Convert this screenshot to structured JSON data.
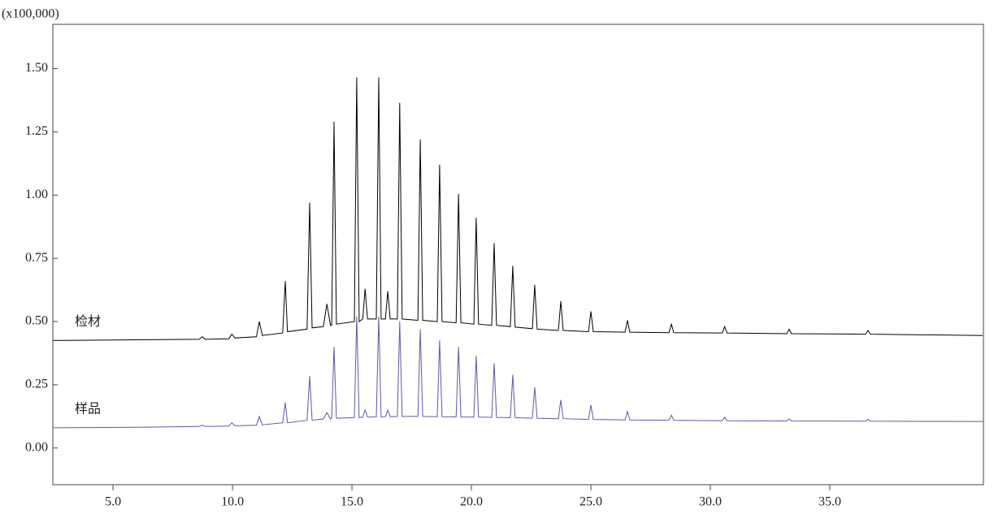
{
  "chart_data": {
    "type": "line",
    "y_axis_label": "(x100,000)",
    "xlim": [
      2.48,
      41.43
    ],
    "ylim": [
      -0.145,
      1.675
    ],
    "xticks": [
      {
        "value": 5,
        "label": "5.0"
      },
      {
        "value": 10,
        "label": "10.0"
      },
      {
        "value": 15,
        "label": "15.0"
      },
      {
        "value": 20,
        "label": "20.0"
      },
      {
        "value": 25,
        "label": "25.0"
      },
      {
        "value": 30,
        "label": "30.0"
      },
      {
        "value": 35,
        "label": "35.0"
      }
    ],
    "yticks": [
      {
        "value": 0,
        "label": "0.00"
      },
      {
        "value": 0.25,
        "label": "0.25"
      },
      {
        "value": 0.5,
        "label": "0.50"
      },
      {
        "value": 0.75,
        "label": "0.75"
      },
      {
        "value": 1,
        "label": "1.00"
      },
      {
        "value": 1.25,
        "label": "1.25"
      },
      {
        "value": 1.5,
        "label": "1.50"
      }
    ],
    "grid": false,
    "x": [
      2.5,
      6.0,
      8.6,
      8.74,
      8.85,
      9.85,
      9.97,
      10.1,
      11.0,
      11.12,
      11.25,
      12.1,
      12.21,
      12.3,
      13.12,
      13.23,
      13.33,
      13.8,
      13.95,
      14.1,
      14.15,
      14.25,
      14.35,
      15.1,
      15.2,
      15.3,
      15.45,
      15.55,
      15.65,
      16.02,
      16.12,
      16.22,
      16.4,
      16.5,
      16.6,
      16.9,
      17.0,
      17.1,
      17.76,
      17.86,
      17.96,
      18.57,
      18.67,
      18.77,
      19.36,
      19.46,
      19.56,
      20.1,
      20.2,
      20.3,
      20.85,
      20.95,
      21.05,
      21.63,
      21.73,
      21.83,
      22.55,
      22.65,
      22.75,
      23.64,
      23.74,
      23.84,
      24.9,
      25.0,
      25.1,
      26.43,
      26.53,
      26.63,
      28.27,
      28.37,
      28.47,
      30.5,
      30.6,
      30.7,
      33.2,
      33.3,
      33.4,
      36.5,
      36.6,
      36.7,
      41.4
    ],
    "series": [
      {
        "name": "检材",
        "color": "#000000",
        "values": [
          0.425,
          0.428,
          0.43,
          0.44,
          0.43,
          0.432,
          0.45,
          0.435,
          0.44,
          0.5,
          0.445,
          0.455,
          0.66,
          0.46,
          0.47,
          0.97,
          0.475,
          0.48,
          0.57,
          0.485,
          0.485,
          1.29,
          0.49,
          0.5,
          1.465,
          0.5,
          0.51,
          0.63,
          0.51,
          0.51,
          1.465,
          0.51,
          0.51,
          0.62,
          0.51,
          0.51,
          1.365,
          0.51,
          0.505,
          1.22,
          0.505,
          0.5,
          1.12,
          0.5,
          0.495,
          1.005,
          0.495,
          0.49,
          0.91,
          0.49,
          0.485,
          0.81,
          0.485,
          0.48,
          0.72,
          0.478,
          0.472,
          0.645,
          0.47,
          0.465,
          0.58,
          0.465,
          0.46,
          0.54,
          0.46,
          0.458,
          0.505,
          0.458,
          0.456,
          0.49,
          0.456,
          0.455,
          0.48,
          0.455,
          0.452,
          0.47,
          0.452,
          0.45,
          0.465,
          0.45,
          0.445
        ]
      },
      {
        "name": "样品",
        "color": "#5a5aa8",
        "values": [
          0.08,
          0.082,
          0.085,
          0.09,
          0.085,
          0.087,
          0.1,
          0.088,
          0.09,
          0.125,
          0.092,
          0.1,
          0.18,
          0.1,
          0.11,
          0.285,
          0.11,
          0.115,
          0.14,
          0.115,
          0.118,
          0.4,
          0.118,
          0.12,
          0.52,
          0.12,
          0.122,
          0.15,
          0.122,
          0.123,
          0.52,
          0.123,
          0.124,
          0.15,
          0.124,
          0.125,
          0.5,
          0.125,
          0.125,
          0.47,
          0.125,
          0.124,
          0.425,
          0.124,
          0.123,
          0.4,
          0.123,
          0.122,
          0.365,
          0.122,
          0.121,
          0.335,
          0.121,
          0.12,
          0.29,
          0.12,
          0.118,
          0.24,
          0.118,
          0.116,
          0.19,
          0.116,
          0.113,
          0.17,
          0.113,
          0.111,
          0.145,
          0.111,
          0.11,
          0.13,
          0.11,
          0.108,
          0.122,
          0.108,
          0.107,
          0.115,
          0.107,
          0.106,
          0.113,
          0.106,
          0.105
        ]
      }
    ]
  }
}
